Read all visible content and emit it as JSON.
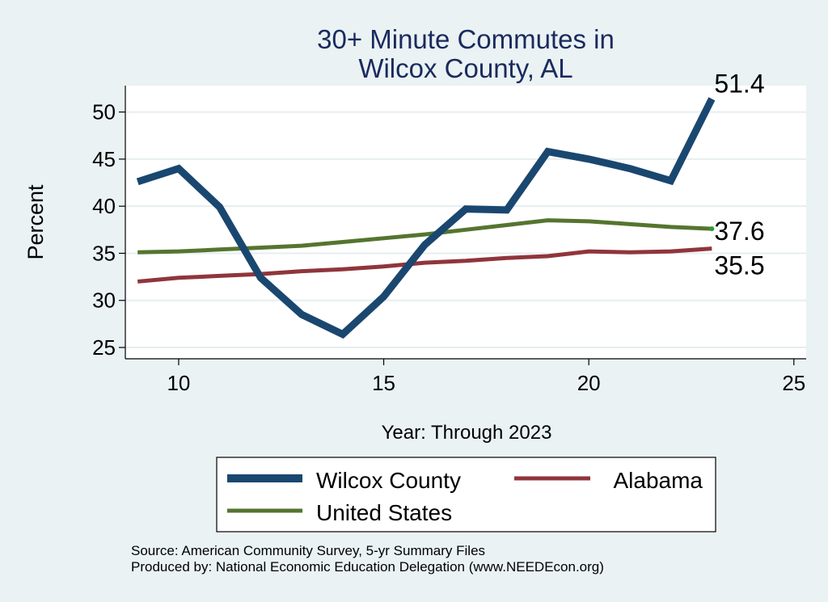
{
  "chart_data": {
    "type": "line",
    "title_lines": [
      "30+ Minute Commutes in",
      "Wilcox County, AL"
    ],
    "xlabel": "Year: Through 2023",
    "ylabel": "Percent",
    "xlim": [
      8.7,
      25.3
    ],
    "ylim": [
      23.8,
      52.8
    ],
    "x_ticks": [
      10,
      15,
      20,
      25
    ],
    "y_ticks": [
      25,
      30,
      35,
      40,
      45,
      50
    ],
    "x_tick_labels": [
      "10",
      "15",
      "20",
      "25"
    ],
    "y_tick_labels": [
      "25",
      "30",
      "35",
      "40",
      "45",
      "50"
    ],
    "grid": true,
    "x": [
      9,
      10,
      11,
      12,
      13,
      14,
      15,
      16,
      17,
      18,
      19,
      20,
      21,
      22,
      23
    ],
    "series": [
      {
        "name": "Wilcox County",
        "color": "#1a476f",
        "values": [
          42.6,
          44.0,
          39.9,
          32.4,
          28.5,
          26.4,
          30.4,
          35.9,
          39.7,
          39.6,
          45.8,
          45.0,
          44.0,
          42.7,
          51.4
        ],
        "end_label": "51.4"
      },
      {
        "name": "Alabama",
        "color": "#90353b",
        "values": [
          32.0,
          32.4,
          32.6,
          32.8,
          33.1,
          33.3,
          33.6,
          34.0,
          34.2,
          34.5,
          34.7,
          35.2,
          35.1,
          35.2,
          35.5
        ],
        "end_label": "35.5"
      },
      {
        "name": "United States",
        "color": "#55752f",
        "values": [
          35.1,
          35.2,
          35.4,
          35.6,
          35.8,
          36.2,
          36.6,
          37.0,
          37.5,
          38.0,
          38.5,
          38.4,
          38.1,
          37.8,
          37.6
        ],
        "end_label": "37.6"
      }
    ],
    "legend": {
      "placement": "bottom",
      "entries": [
        "Wilcox County",
        "Alabama",
        "United States"
      ]
    }
  },
  "footer": {
    "source": "Source: American Community Survey, 5-yr Summary Files",
    "produced_by": "Produced by: National Economic Education Delegation (www.NEEDEcon.org)"
  }
}
